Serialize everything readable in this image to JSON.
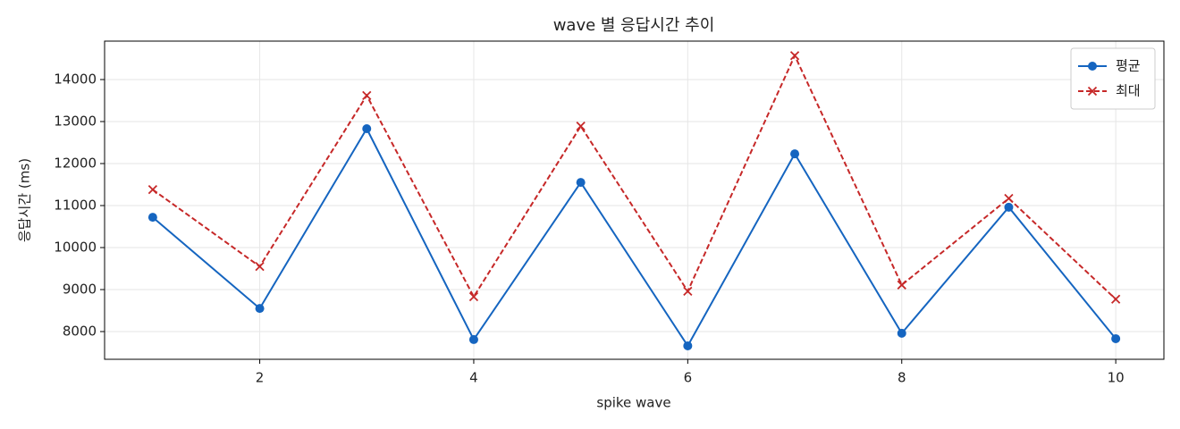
{
  "chart_data": {
    "type": "line",
    "title": "wave 별 응답시간 추이",
    "xlabel": "spike wave",
    "ylabel": "응답시간 (ms)",
    "x": [
      1,
      2,
      3,
      4,
      5,
      6,
      7,
      8,
      9,
      10
    ],
    "series": [
      {
        "name": "평균",
        "color": "#1565c0",
        "marker": "o",
        "linestyle": "solid",
        "values": [
          10720,
          8550,
          12830,
          7810,
          11550,
          7660,
          12230,
          7960,
          10960,
          7830
        ]
      },
      {
        "name": "최대",
        "color": "#c62828",
        "marker": "x",
        "linestyle": "dashed",
        "values": [
          11380,
          9550,
          13620,
          8830,
          12890,
          8960,
          14570,
          9110,
          11170,
          8770
        ]
      }
    ],
    "xlim": [
      0.55,
      10.45
    ],
    "xticks": [
      2,
      4,
      6,
      8,
      10
    ],
    "ylim": [
      7340,
      14915
    ],
    "yticks": [
      8000,
      9000,
      10000,
      11000,
      12000,
      13000,
      14000
    ],
    "grid": true,
    "legend": "upper right"
  }
}
